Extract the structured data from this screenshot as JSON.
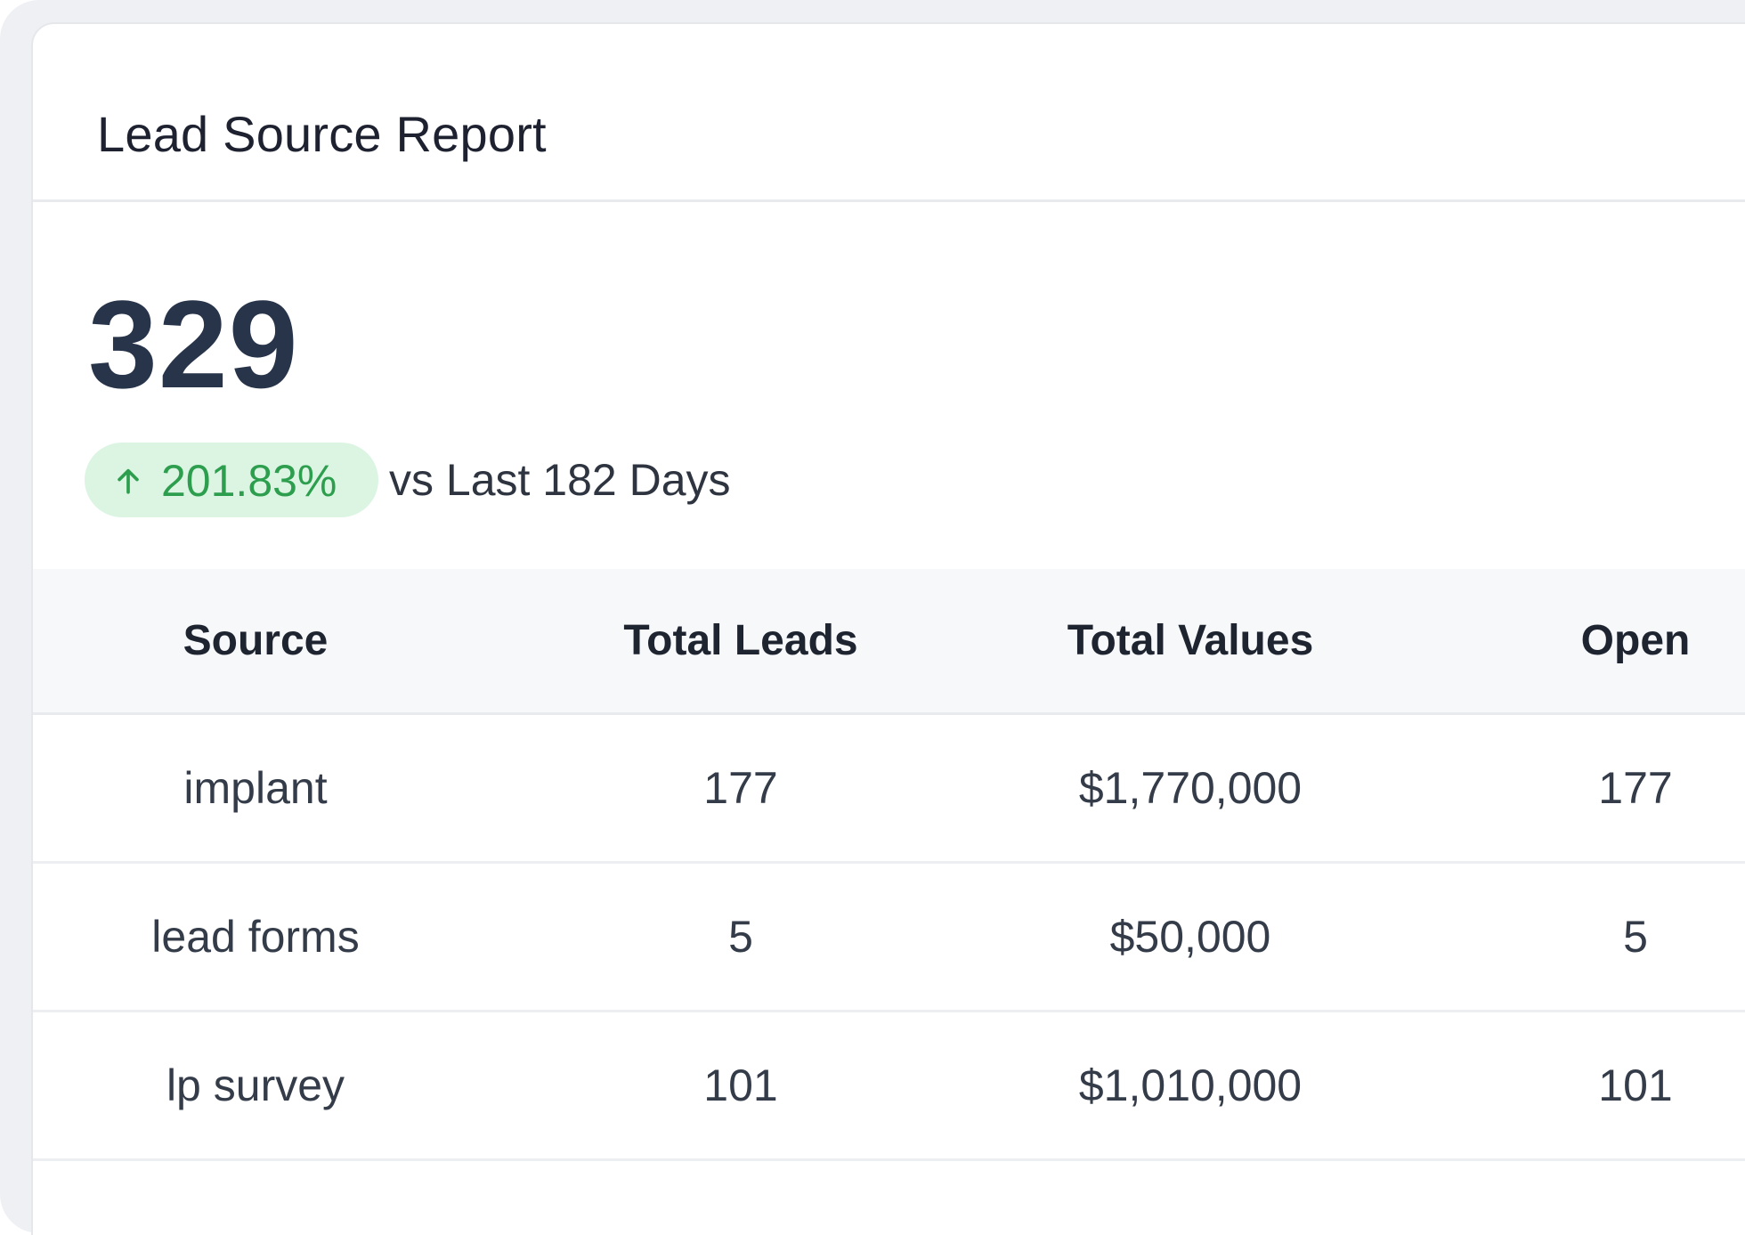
{
  "card": {
    "title": "Lead Source Report",
    "total": "329",
    "trend": {
      "direction": "up",
      "arrow_icon": "arrow-up-icon",
      "value": "201.83%",
      "caption": "vs Last 182 Days",
      "color": "#2d9e4e",
      "background": "#dcf5e3"
    }
  },
  "table": {
    "columns": [
      "Source",
      "Total Leads",
      "Total Values",
      "Open"
    ],
    "rows": [
      [
        "implant",
        "177",
        "$1,770,000",
        "177"
      ],
      [
        "lead forms",
        "5",
        "$50,000",
        "5"
      ],
      [
        "lp survey",
        "101",
        "$1,010,000",
        "101"
      ]
    ]
  }
}
